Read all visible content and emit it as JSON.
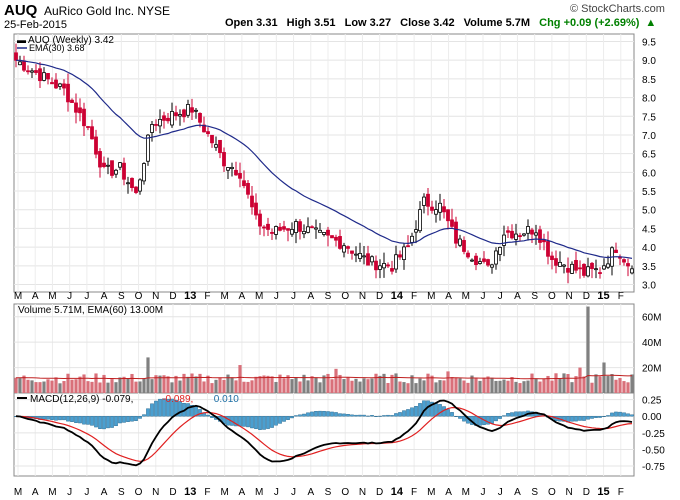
{
  "header": {
    "symbol": "AUQ",
    "company": "AuRico Gold Inc. NYSE",
    "date": "25-Feb-2015",
    "brand": "© StockCharts.com",
    "open": "Open 3.31",
    "high": "High 3.51",
    "low": "Low 3.27",
    "close": "Close 3.42",
    "volume": "Volume 5.7M",
    "chg": "Chg +0.09 (+2.69%)",
    "chg_up_icon": "triangle-up-icon"
  },
  "colors": {
    "up": "#000000",
    "down": "#cc0033",
    "ema": "#1f2a8a",
    "vol_up": "#808080",
    "vol_down": "#d9707a",
    "macd": "#000000",
    "signal": "#e02020",
    "hist": "#4a9fd0"
  },
  "chart_data": [
    {
      "type": "candlestick",
      "title": "AUQ (Weekly) 3.42",
      "legend": [
        "EMA(30) 3.68"
      ],
      "yticks": [
        "9.5",
        "9.0",
        "8.5",
        "8.0",
        "7.5",
        "7.0",
        "6.5",
        "6.0",
        "5.5",
        "5.0",
        "4.5",
        "4.0",
        "3.5",
        "3.0"
      ],
      "ylim": [
        2.8,
        9.7
      ],
      "x_labels": [
        "M",
        "A",
        "M",
        "J",
        "J",
        "A",
        "S",
        "O",
        "N",
        "D",
        "13",
        "F",
        "M",
        "A",
        "M",
        "J",
        "J",
        "A",
        "S",
        "O",
        "N",
        "D",
        "14",
        "F",
        "M",
        "A",
        "M",
        "J",
        "J",
        "A",
        "S",
        "O",
        "N",
        "D",
        "15",
        "F"
      ],
      "weeks": 155,
      "close_anchors": [
        [
          0,
          9.0
        ],
        [
          6,
          8.6
        ],
        [
          12,
          8.2
        ],
        [
          18,
          7.2
        ],
        [
          22,
          6.0
        ],
        [
          26,
          6.1
        ],
        [
          30,
          5.4
        ],
        [
          34,
          7.3
        ],
        [
          38,
          7.5
        ],
        [
          44,
          7.7
        ],
        [
          48,
          7.0
        ],
        [
          52,
          6.3
        ],
        [
          56,
          6.0
        ],
        [
          60,
          4.7
        ],
        [
          64,
          4.4
        ],
        [
          70,
          4.6
        ],
        [
          76,
          4.3
        ],
        [
          82,
          4.1
        ],
        [
          88,
          3.6
        ],
        [
          94,
          3.5
        ],
        [
          98,
          4.0
        ],
        [
          102,
          5.2
        ],
        [
          106,
          5.1
        ],
        [
          110,
          4.2
        ],
        [
          114,
          3.8
        ],
        [
          118,
          3.4
        ],
        [
          122,
          4.4
        ],
        [
          126,
          4.4
        ],
        [
          130,
          4.5
        ],
        [
          134,
          3.7
        ],
        [
          138,
          3.5
        ],
        [
          142,
          3.3
        ],
        [
          146,
          3.4
        ],
        [
          150,
          4.0
        ],
        [
          154,
          3.42
        ]
      ],
      "ema_label": "EMA(30)"
    },
    {
      "type": "bar",
      "title": "Volume 5.71M, EMA(60) 13.00M",
      "yticks": [
        "60M",
        "40M",
        "20M"
      ],
      "ylim": [
        0,
        70
      ],
      "base": 10,
      "spikes": [
        [
          33,
          28
        ],
        [
          56,
          22
        ],
        [
          80,
          19
        ],
        [
          108,
          17
        ],
        [
          141,
          20
        ],
        [
          143,
          68
        ],
        [
          147,
          24
        ]
      ]
    },
    {
      "type": "line",
      "title": "MACD(12,26,9) -0.079, -0.089, 0.010",
      "series": [
        {
          "name": "MACD"
        },
        {
          "name": "Signal"
        },
        {
          "name": "Histogram"
        }
      ],
      "yticks": [
        "0.25",
        "0.00",
        "-0.25",
        "-0.50",
        "-0.75"
      ],
      "ylim": [
        -0.9,
        0.35
      ]
    }
  ]
}
